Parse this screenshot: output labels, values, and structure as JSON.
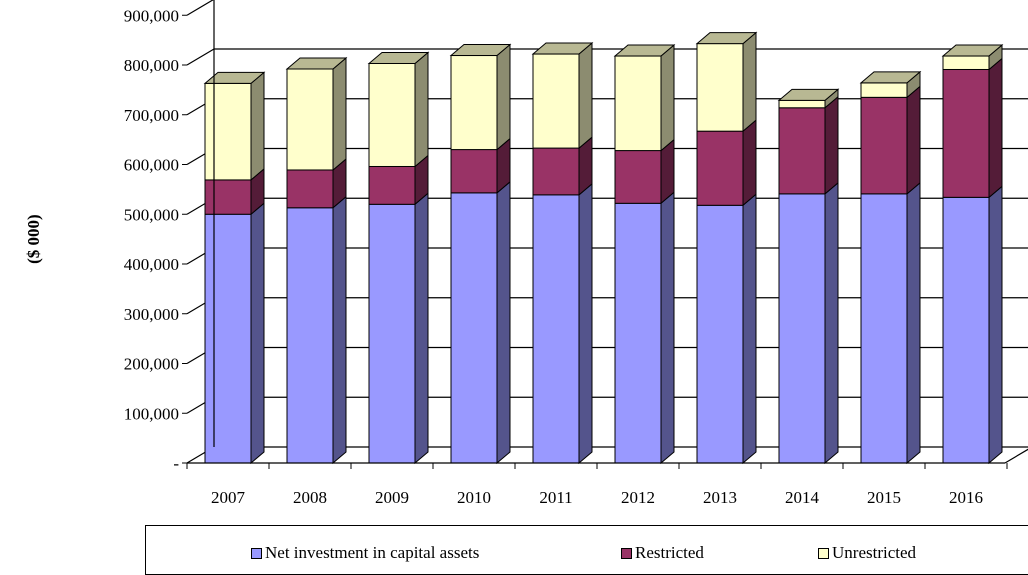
{
  "chart_data": {
    "type": "bar",
    "stacked": true,
    "style": "3d-column",
    "ylabel": "($ 000)",
    "ylim": [
      0,
      900000
    ],
    "yticks": [
      0,
      100000,
      200000,
      300000,
      400000,
      500000,
      600000,
      700000,
      800000,
      900000
    ],
    "ytick_labels": [
      "-",
      "100,000",
      "200,000",
      "300,000",
      "400,000",
      "500,000",
      "600,000",
      "700,000",
      "800,000",
      "900,000"
    ],
    "grid": true,
    "legend_position": "bottom",
    "categories": [
      "2007",
      "2008",
      "2009",
      "2010",
      "2011",
      "2012",
      "2013",
      "2014",
      "2015",
      "2016"
    ],
    "series": [
      {
        "name": "Net investment in capital assets",
        "color": "#9999ff",
        "values": [
          500000,
          513000,
          520000,
          543000,
          539000,
          522000,
          518000,
          541000,
          541000,
          534000
        ]
      },
      {
        "name": "Restricted",
        "color": "#993366",
        "values": [
          69000,
          76000,
          76000,
          87000,
          94000,
          106000,
          149000,
          173000,
          194000,
          257000
        ]
      },
      {
        "name": "Unrestricted",
        "color": "#ffffcc",
        "values": [
          194000,
          203000,
          207000,
          189000,
          189000,
          190000,
          176000,
          15000,
          29000,
          27000
        ]
      }
    ]
  }
}
